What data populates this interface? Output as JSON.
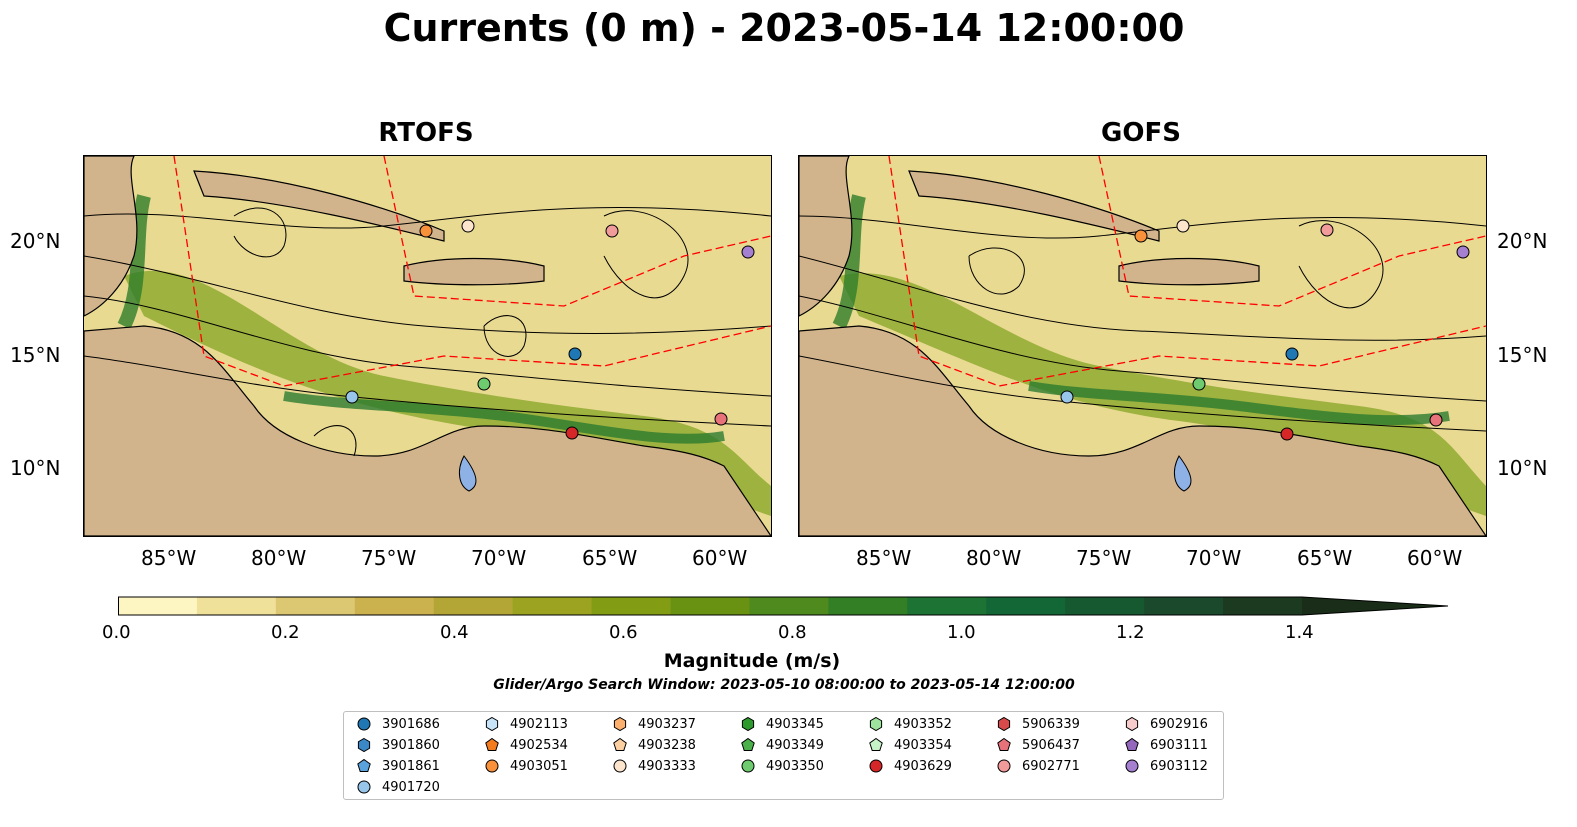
{
  "title": "Currents (0 m) - 2023-05-14 12:00:00",
  "panels": [
    {
      "title": "RTOFS"
    },
    {
      "title": "GOFS"
    }
  ],
  "lat_ticks": [
    "20°N",
    "15°N",
    "10°N"
  ],
  "lon_ticks": [
    "85°W",
    "80°W",
    "75°W",
    "70°W",
    "65°W",
    "60°W"
  ],
  "colorbar": {
    "title": "Magnitude (m/s)",
    "tick_labels": [
      "0.0",
      "0.2",
      "0.4",
      "0.6",
      "0.8",
      "1.0",
      "1.2",
      "1.4"
    ],
    "range": [
      0.0,
      1.5
    ],
    "extend": "max",
    "colors": [
      "#fdf6c3",
      "#efe09a",
      "#dcc772",
      "#cbb24e",
      "#b3a636",
      "#9ba321",
      "#829d13",
      "#6a9212",
      "#4e8a1d",
      "#327f25",
      "#1c7333",
      "#136636",
      "#165830",
      "#1a4a2b",
      "#1b3a20",
      "#1a2d18"
    ]
  },
  "subtitle": "Glider/Argo Search Window: 2023-05-10 08:00:00 to 2023-05-14 12:00:00",
  "legend": [
    {
      "label": "3901686",
      "color": "#1f77b4",
      "shape": "circle"
    },
    {
      "label": "3901860",
      "color": "#3a88c8",
      "shape": "hexagon"
    },
    {
      "label": "3901861",
      "color": "#5aa2dc",
      "shape": "pentagon"
    },
    {
      "label": "4901720",
      "color": "#98c6ea",
      "shape": "circle"
    },
    {
      "label": "4902113",
      "color": "#c6e3f8",
      "shape": "hexagon"
    },
    {
      "label": "4902534",
      "color": "#f47c1f",
      "shape": "pentagon"
    },
    {
      "label": "4903051",
      "color": "#f8913a",
      "shape": "circle"
    },
    {
      "label": "4903237",
      "color": "#fbb06e",
      "shape": "hexagon"
    },
    {
      "label": "4903238",
      "color": "#fdd0a2",
      "shape": "pentagon"
    },
    {
      "label": "4903333",
      "color": "#fde4cc",
      "shape": "circle"
    },
    {
      "label": "4903345",
      "color": "#2c9a2c",
      "shape": "hexagon"
    },
    {
      "label": "4903349",
      "color": "#4bb14b",
      "shape": "pentagon"
    },
    {
      "label": "4903350",
      "color": "#6fcb6f",
      "shape": "circle"
    },
    {
      "label": "4903352",
      "color": "#9ee49e",
      "shape": "hexagon"
    },
    {
      "label": "4903354",
      "color": "#c7f2c7",
      "shape": "pentagon"
    },
    {
      "label": "4903629",
      "color": "#d62728",
      "shape": "circle"
    },
    {
      "label": "5906339",
      "color": "#d94a4a",
      "shape": "hexagon"
    },
    {
      "label": "5906437",
      "color": "#e8727a",
      "shape": "pentagon"
    },
    {
      "label": "6902771",
      "color": "#f29b9b",
      "shape": "circle"
    },
    {
      "label": "6902916",
      "color": "#f9cccc",
      "shape": "hexagon"
    },
    {
      "label": "6903111",
      "color": "#9467bd",
      "shape": "pentagon"
    },
    {
      "label": "6903112",
      "color": "#a57fd0",
      "shape": "circle"
    }
  ]
}
